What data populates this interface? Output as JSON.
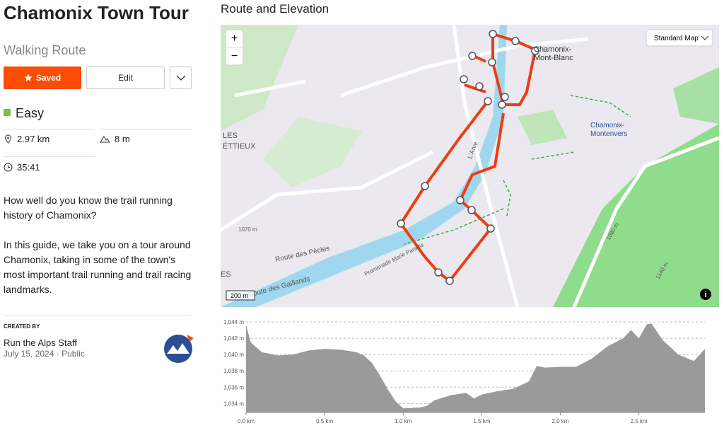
{
  "header": {
    "title": "Chamonix Town Tour",
    "subtitle": "Walking Route"
  },
  "actions": {
    "saved": "Saved",
    "edit": "Edit"
  },
  "difficulty": "Easy",
  "stats": {
    "distance": "2.97 km",
    "elevation_gain": "8 m",
    "duration": "35:41"
  },
  "description": [
    "How well do you know the trail running history of Chamonix?",
    "In this guide, we take you on a tour around Chamonix, taking in some of the town's most important trail running and trail racing landmarks."
  ],
  "creator": {
    "label": "CREATED BY",
    "name": "Run the Alps Staff",
    "date": "July 15, 2024",
    "visibility": "Public"
  },
  "section_title": "Route and Elevation",
  "map": {
    "style": "Standard Map",
    "zoom_in": "+",
    "zoom_out": "−",
    "scale": "200 m",
    "labels": [
      "Chamonix-",
      "Mont-Blanc",
      "Chamonix-",
      "Montenvers",
      "LES",
      "ÉTTIEUX",
      "Route des Pècles",
      "Promenade Marie Paradis",
      "Route des Gaillands",
      "L'Arve",
      "1070 m",
      "1080 m",
      "1140 m",
      "ES"
    ]
  },
  "chart_data": {
    "type": "area",
    "color": "#9a9a9a",
    "grid": true,
    "x": [
      0,
      0.03,
      0.1,
      0.2,
      0.3,
      0.4,
      0.5,
      0.6,
      0.7,
      0.75,
      0.8,
      0.85,
      0.9,
      0.95,
      1.0,
      1.1,
      1.15,
      1.2,
      1.3,
      1.4,
      1.45,
      1.5,
      1.6,
      1.7,
      1.8,
      1.85,
      1.9,
      2.0,
      2.1,
      2.2,
      2.3,
      2.4,
      2.45,
      2.5,
      2.55,
      2.58,
      2.65,
      2.75,
      2.85,
      2.92
    ],
    "values": [
      1043.6,
      1041.5,
      1040.3,
      1039.9,
      1040.0,
      1040.5,
      1040.7,
      1040.6,
      1040.3,
      1039.9,
      1039.0,
      1037.5,
      1035.8,
      1034.3,
      1033.4,
      1033.5,
      1033.7,
      1034.4,
      1035.0,
      1035.3,
      1034.6,
      1035.1,
      1035.5,
      1035.8,
      1036.7,
      1038.6,
      1038.4,
      1038.5,
      1038.5,
      1039.5,
      1041.0,
      1042.0,
      1043.0,
      1042.0,
      1043.7,
      1043.8,
      1041.8,
      1040.0,
      1039.2,
      1040.7
    ],
    "xlim": [
      0,
      2.92
    ],
    "ylim": [
      1032.9,
      1044.7
    ],
    "xticks": [
      {
        "value": 0,
        "label": "0.0 km"
      },
      {
        "value": 0.5,
        "label": "0.5 km"
      },
      {
        "value": 1,
        "label": "1.0 km"
      },
      {
        "value": 1.5,
        "label": "1.5 km"
      },
      {
        "value": 2,
        "label": "2.0 km"
      },
      {
        "value": 2.5,
        "label": "2.5 km"
      }
    ],
    "yticks": [
      {
        "value": 1034,
        "label": "1,034 m"
      },
      {
        "value": 1036,
        "label": "1,036 m"
      },
      {
        "value": 1038,
        "label": "1,038 m"
      },
      {
        "value": 1040,
        "label": "1,040 m"
      },
      {
        "value": 1042,
        "label": "1,042 m"
      },
      {
        "value": 1044,
        "label": "1,044 m"
      }
    ]
  }
}
